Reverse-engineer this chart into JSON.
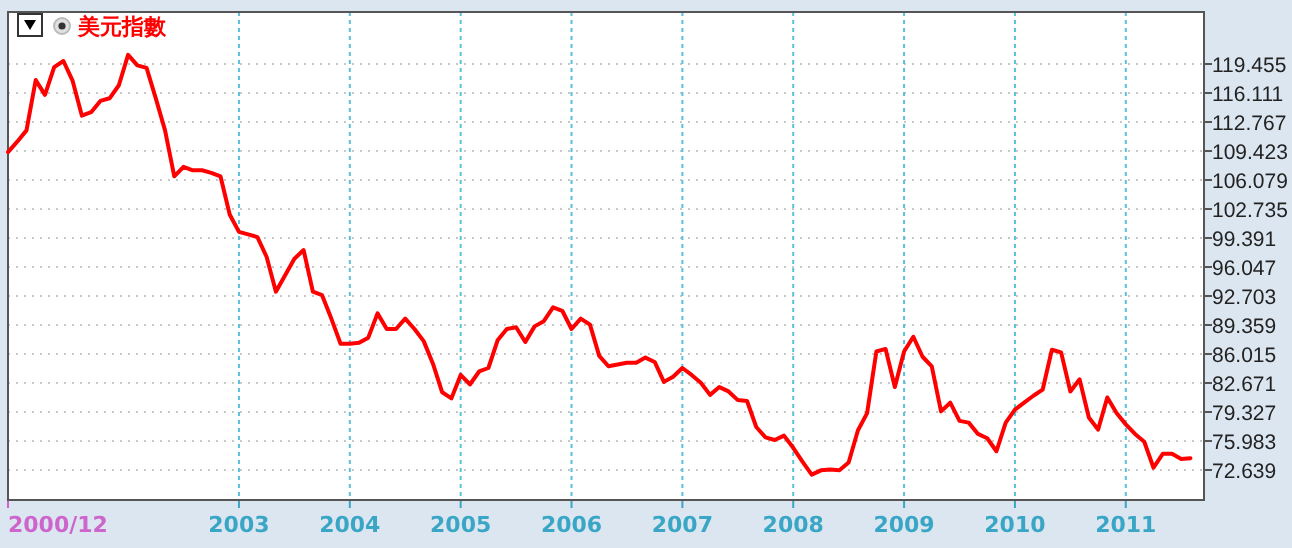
{
  "chart_data": {
    "type": "line",
    "x": [
      "2000-12",
      "2001-01",
      "2001-02",
      "2001-03",
      "2001-04",
      "2001-05",
      "2001-06",
      "2001-07",
      "2001-08",
      "2001-09",
      "2001-10",
      "2001-11",
      "2001-12",
      "2002-01",
      "2002-02",
      "2002-03",
      "2002-04",
      "2002-05",
      "2002-06",
      "2002-07",
      "2002-08",
      "2002-09",
      "2002-10",
      "2002-11",
      "2002-12",
      "2003-01",
      "2003-02",
      "2003-03",
      "2003-04",
      "2003-05",
      "2003-06",
      "2003-07",
      "2003-08",
      "2003-09",
      "2003-10",
      "2003-11",
      "2003-12",
      "2004-01",
      "2004-02",
      "2004-03",
      "2004-04",
      "2004-05",
      "2004-06",
      "2004-07",
      "2004-08",
      "2004-09",
      "2004-10",
      "2004-11",
      "2004-12",
      "2005-01",
      "2005-02",
      "2005-03",
      "2005-04",
      "2005-05",
      "2005-06",
      "2005-07",
      "2005-08",
      "2005-09",
      "2005-10",
      "2005-11",
      "2005-12",
      "2006-01",
      "2006-02",
      "2006-03",
      "2006-04",
      "2006-05",
      "2006-06",
      "2006-07",
      "2006-08",
      "2006-09",
      "2006-10",
      "2006-11",
      "2006-12",
      "2007-01",
      "2007-02",
      "2007-03",
      "2007-04",
      "2007-05",
      "2007-06",
      "2007-07",
      "2007-08",
      "2007-09",
      "2007-10",
      "2007-11",
      "2007-12",
      "2008-01",
      "2008-02",
      "2008-03",
      "2008-04",
      "2008-05",
      "2008-06",
      "2008-07",
      "2008-08",
      "2008-09",
      "2008-10",
      "2008-11",
      "2008-12",
      "2009-01",
      "2009-02",
      "2009-03",
      "2009-04",
      "2009-05",
      "2009-06",
      "2009-07",
      "2009-08",
      "2009-09",
      "2009-10",
      "2009-11",
      "2009-12",
      "2010-01",
      "2010-02",
      "2010-03",
      "2010-04",
      "2010-05",
      "2010-06",
      "2010-07",
      "2010-08",
      "2010-09",
      "2010-10",
      "2010-11",
      "2010-12",
      "2011-01",
      "2011-02",
      "2011-03",
      "2011-04",
      "2011-05",
      "2011-06",
      "2011-07",
      "2011-08"
    ],
    "series": [
      {
        "name": "美元指數",
        "color": "#ff0000",
        "values": [
          109.3,
          110.5,
          111.8,
          117.6,
          115.9,
          119.1,
          119.8,
          117.5,
          113.5,
          113.9,
          115.2,
          115.5,
          117.0,
          120.5,
          119.3,
          119.0,
          115.5,
          111.8,
          106.5,
          107.6,
          107.2,
          107.2,
          106.9,
          106.5,
          102.1,
          100.1,
          99.8,
          99.5,
          97.2,
          93.2,
          95.1,
          97.0,
          98.0,
          93.2,
          92.8,
          90.1,
          87.2,
          87.2,
          87.3,
          87.9,
          90.7,
          88.9,
          88.9,
          90.1,
          88.9,
          87.5,
          84.9,
          81.6,
          80.9,
          83.6,
          82.5,
          84.0,
          84.4,
          87.6,
          88.9,
          89.1,
          87.4,
          89.2,
          89.8,
          91.4,
          91.0,
          88.9,
          90.1,
          89.4,
          85.8,
          84.6,
          84.8,
          85.0,
          85.0,
          85.6,
          85.1,
          82.8,
          83.4,
          84.4,
          83.6,
          82.7,
          81.3,
          82.2,
          81.7,
          80.7,
          80.6,
          77.6,
          76.4,
          76.1,
          76.6,
          75.2,
          73.6,
          72.1,
          72.6,
          72.7,
          72.6,
          73.5,
          77.2,
          79.2,
          86.3,
          86.6,
          82.2,
          86.3,
          88.0,
          85.7,
          84.6,
          79.4,
          80.4,
          78.3,
          78.1,
          76.8,
          76.3,
          74.8,
          78.1,
          79.6,
          80.4,
          81.2,
          81.9,
          86.5,
          86.2,
          81.7,
          83.1,
          78.7,
          77.3,
          81.0,
          79.2,
          77.9,
          76.8,
          75.9,
          72.9,
          74.5,
          74.5,
          73.9,
          74.0
        ]
      }
    ],
    "xlim": [
      "2000-12",
      "2011-09-15"
    ],
    "ylim": [
      69.18,
      125.45
    ],
    "xticks": [
      {
        "value": "2000-12",
        "label": "2000/12"
      },
      {
        "value": "2003",
        "label": "2003"
      },
      {
        "value": "2004",
        "label": "2004"
      },
      {
        "value": "2005",
        "label": "2005"
      },
      {
        "value": "2006",
        "label": "2006"
      },
      {
        "value": "2007",
        "label": "2007"
      },
      {
        "value": "2008",
        "label": "2008"
      },
      {
        "value": "2009",
        "label": "2009"
      },
      {
        "value": "2010",
        "label": "2010"
      },
      {
        "value": "2011",
        "label": "2011"
      }
    ],
    "yticks": [
      72.639,
      75.983,
      79.327,
      82.671,
      86.015,
      89.359,
      92.703,
      96.047,
      99.391,
      102.735,
      106.079,
      109.423,
      112.767,
      116.111,
      119.455
    ],
    "grid": true,
    "legend": "top left"
  }
}
